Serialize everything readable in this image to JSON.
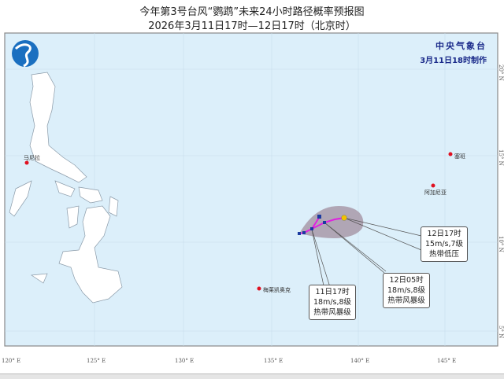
{
  "title": "今年第3号台风“鹦鹉”未来24小时路径概率预报图",
  "subtitle": "2026年3月11日17时—12日17时（北京时）",
  "agency": {
    "name": "中央气象台",
    "issued": "3月11日18时制作"
  },
  "axes": {
    "longitude_labels": [
      "120° E",
      "125° E",
      "130° E",
      "135° E",
      "140° E",
      "145° E"
    ],
    "latitude_labels": [
      "20° N",
      "15° N",
      "10° N",
      "5° N"
    ]
  },
  "places": [
    {
      "name": "马尼拉"
    },
    {
      "name": "梅莱凯奥克"
    },
    {
      "name": "塞班"
    },
    {
      "name": "阿加尼亚"
    }
  ],
  "forecast_points": [
    {
      "time": "11日17时",
      "wind": "18m/s,8级",
      "level": "热带风暴级"
    },
    {
      "time": "12日05时",
      "wind": "18m/s,8级",
      "level": "热带风暴级"
    },
    {
      "time": "12日17时",
      "wind": "15m/s,7级",
      "level": "热带低压"
    }
  ],
  "colors": {
    "sea": "#dcefFa",
    "land": "#ffffff",
    "cone": "#a899a8",
    "track": "#e020e0",
    "points": "#1a3aa0",
    "agency_text": "#1a2a8a"
  }
}
